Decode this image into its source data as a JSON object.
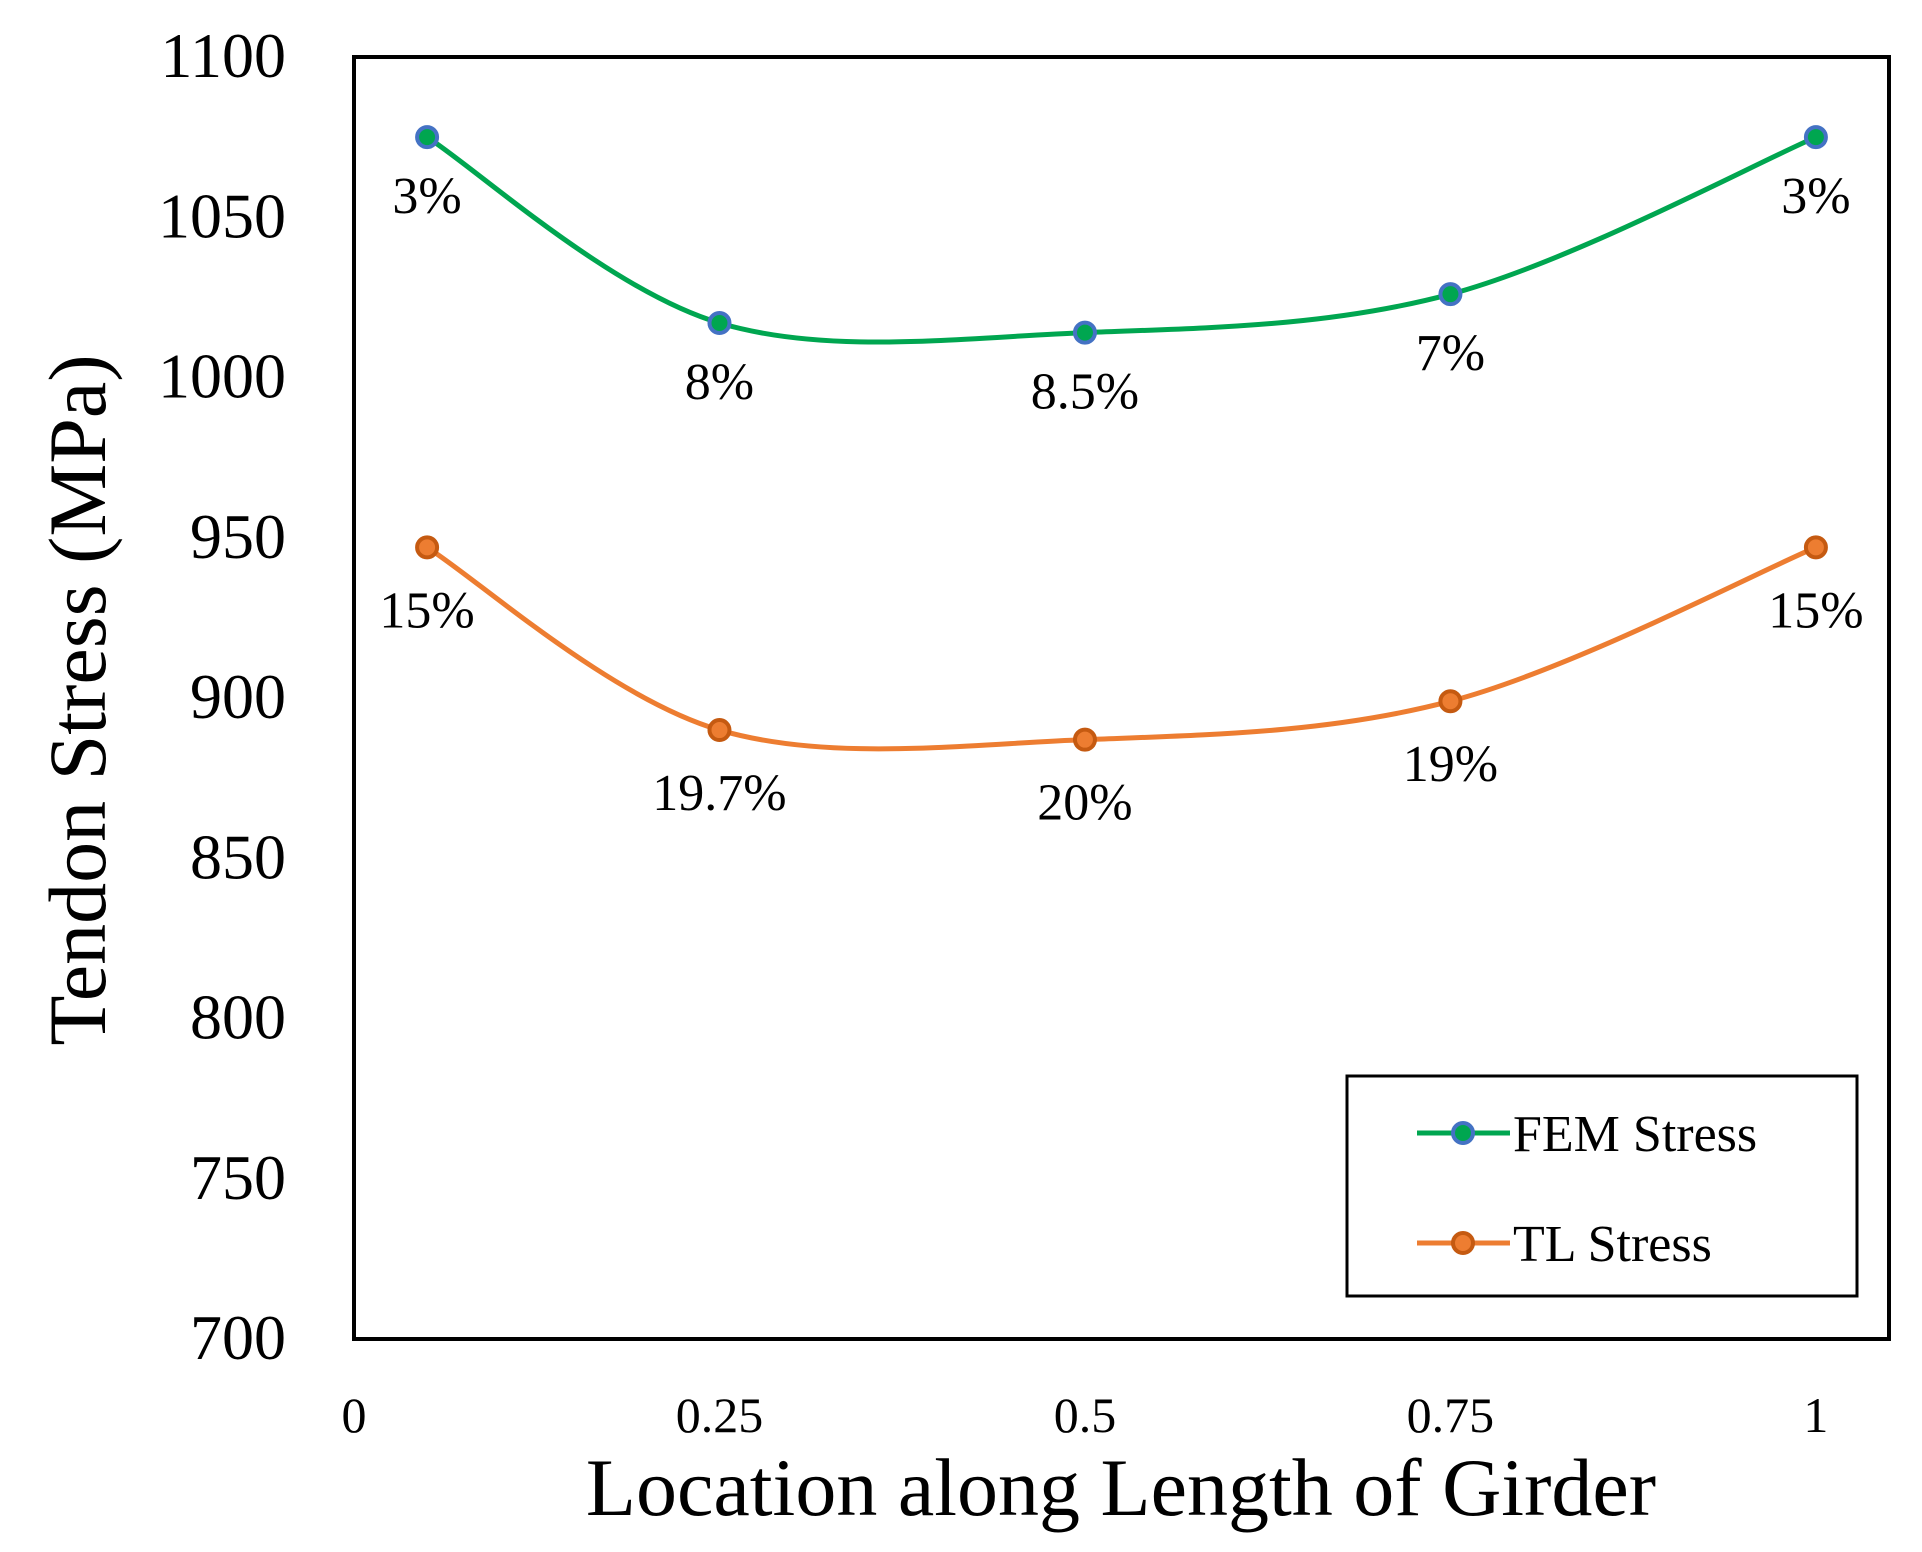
{
  "chart_data": {
    "type": "line",
    "title": "",
    "xlabel": "Location along Length of Girder",
    "ylabel": "Tendon Stress (MPa)",
    "xlim": [
      0,
      1.05
    ],
    "ylim": [
      700,
      1100
    ],
    "x_ticks": [
      {
        "value": 0,
        "label": "0"
      },
      {
        "value": 0.25,
        "label": "0.25"
      },
      {
        "value": 0.5,
        "label": "0.5"
      },
      {
        "value": 0.75,
        "label": "0.75"
      },
      {
        "value": 1,
        "label": "1"
      }
    ],
    "y_ticks": [
      {
        "value": 700,
        "label": "700"
      },
      {
        "value": 750,
        "label": "750"
      },
      {
        "value": 800,
        "label": "800"
      },
      {
        "value": 850,
        "label": "850"
      },
      {
        "value": 900,
        "label": "900"
      },
      {
        "value": 950,
        "label": "950"
      },
      {
        "value": 1000,
        "label": "1000"
      },
      {
        "value": 1050,
        "label": "1050"
      },
      {
        "value": 1100,
        "label": "1100"
      }
    ],
    "grid": false,
    "legend_position": "bottom-right",
    "series": [
      {
        "name": "FEM Stress",
        "color": "#00a650",
        "marker_color": "#00a650",
        "marker_edge": "#4472c4",
        "x": [
          0.05,
          0.25,
          0.5,
          0.75,
          1.0
        ],
        "values": [
          1075,
          1017,
          1014,
          1026,
          1075
        ],
        "labels": [
          "3%",
          "8%",
          "8.5%",
          "7%",
          "3%"
        ]
      },
      {
        "name": "TL Stress",
        "color": "#ed7d31",
        "marker_color": "#ed7d31",
        "marker_edge": "#c55a11",
        "x": [
          0.05,
          0.25,
          0.5,
          0.75,
          1.0
        ],
        "values": [
          947,
          890,
          887,
          899,
          947
        ],
        "labels": [
          "15%",
          "19.7%",
          "20%",
          "19%",
          "15%"
        ]
      }
    ]
  }
}
